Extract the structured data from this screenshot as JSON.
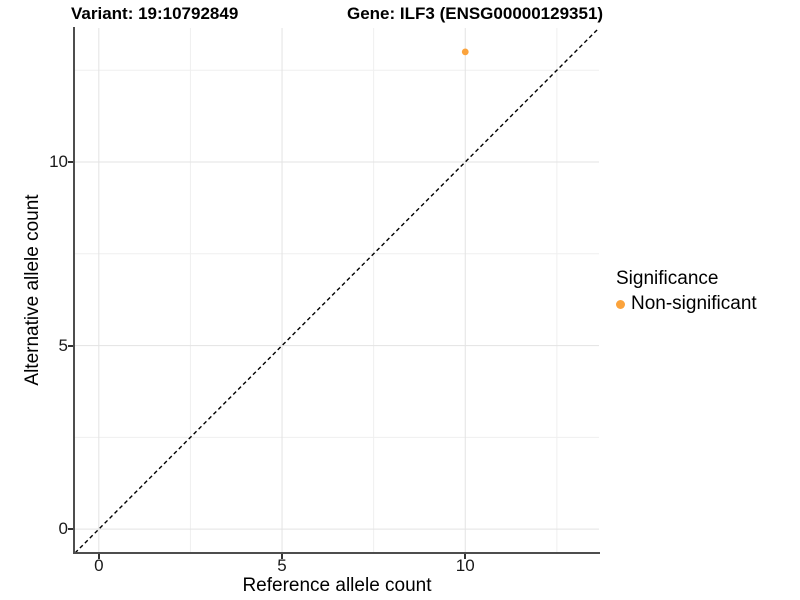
{
  "chart_data": {
    "type": "scatter",
    "title": {
      "left": "Variant: 19:10792849",
      "right": "Gene: ILF3 (ENSG00000129351)"
    },
    "xlabel": "Reference allele count",
    "ylabel": "Alternative allele count",
    "xlim": [
      -0.65,
      13.65
    ],
    "ylim": [
      -0.65,
      13.65
    ],
    "x_ticks": [
      0,
      5,
      10
    ],
    "y_ticks": [
      0,
      5,
      10
    ],
    "x_minor_gridlines": [
      2.5,
      7.5,
      12.5
    ],
    "y_minor_gridlines": [
      2.5,
      7.5,
      12.5
    ],
    "grid": "major and minor, light gray on white",
    "points": [
      {
        "x": 10,
        "y": 13,
        "series": "Non-significant"
      }
    ],
    "identity_line": {
      "style": "dashed",
      "from": -0.65,
      "to": 13.65,
      "color": "#000000"
    },
    "legend": {
      "title": "Significance",
      "position": "right",
      "entries": [
        {
          "label": "Non-significant",
          "color": "#FBA33C"
        }
      ]
    },
    "colors": {
      "point": "#FBA33C",
      "grid_major": "#e3e3e3",
      "grid_minor": "#efefef",
      "axis_line": "#4d4d4d",
      "tick_mark": "#333333",
      "text": "#000000",
      "background": "#ffffff"
    }
  }
}
